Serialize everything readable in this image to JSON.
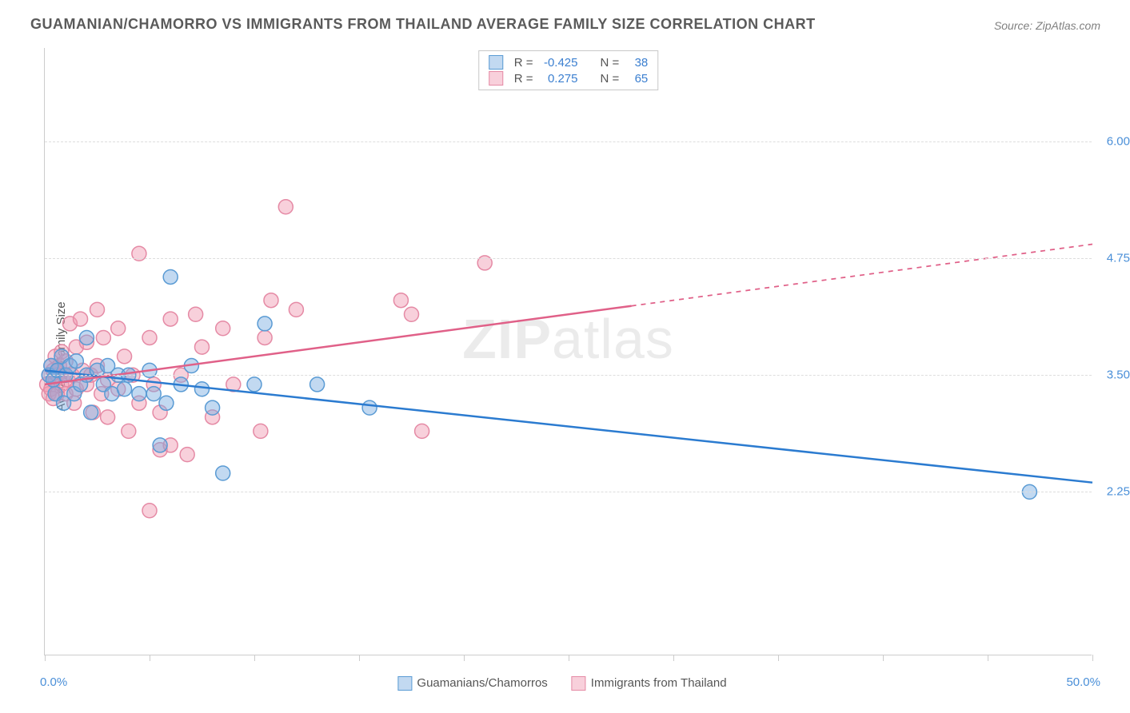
{
  "title": "GUAMANIAN/CHAMORRO VS IMMIGRANTS FROM THAILAND AVERAGE FAMILY SIZE CORRELATION CHART",
  "source": "Source: ZipAtlas.com",
  "yaxis_label": "Average Family Size",
  "xaxis_min_label": "0.0%",
  "xaxis_max_label": "50.0%",
  "watermark_bold": "ZIP",
  "watermark_rest": "atlas",
  "chart": {
    "type": "scatter-with-regression",
    "background_color": "#ffffff",
    "grid_color": "#dddddd",
    "axis_color": "#cccccc",
    "tick_label_color": "#4a8fd8",
    "xlim": [
      0,
      50
    ],
    "ylim": [
      0.5,
      7.0
    ],
    "yticks": [
      2.25,
      3.5,
      4.75,
      6.0
    ],
    "xticks_pct": [
      0,
      5,
      10,
      15,
      20,
      25,
      30,
      35,
      40,
      45,
      50
    ],
    "marker_radius": 9,
    "marker_stroke_width": 1.5,
    "line_width": 2.5,
    "series": [
      {
        "name": "Guamanians/Chamorros",
        "fill_color": "rgba(120,170,225,0.45)",
        "stroke_color": "#5a9bd4",
        "line_color": "#2b7bd0",
        "R": -0.425,
        "N": 38,
        "regression": {
          "x1": 0,
          "y1": 3.55,
          "x2": 50,
          "y2": 2.35,
          "solid_until_x": 50
        },
        "points": [
          [
            0.2,
            3.5
          ],
          [
            0.3,
            3.6
          ],
          [
            0.4,
            3.45
          ],
          [
            0.5,
            3.3
          ],
          [
            0.6,
            3.55
          ],
          [
            0.8,
            3.7
          ],
          [
            0.9,
            3.2
          ],
          [
            1.0,
            3.5
          ],
          [
            1.2,
            3.6
          ],
          [
            1.4,
            3.3
          ],
          [
            1.5,
            3.65
          ],
          [
            1.7,
            3.4
          ],
          [
            2.0,
            3.5
          ],
          [
            2.0,
            3.9
          ],
          [
            2.2,
            3.1
          ],
          [
            2.5,
            3.55
          ],
          [
            2.8,
            3.4
          ],
          [
            3.0,
            3.6
          ],
          [
            3.2,
            3.3
          ],
          [
            3.5,
            3.5
          ],
          [
            3.8,
            3.35
          ],
          [
            4.0,
            3.5
          ],
          [
            4.5,
            3.3
          ],
          [
            5.0,
            3.55
          ],
          [
            5.2,
            3.3
          ],
          [
            5.5,
            2.75
          ],
          [
            5.8,
            3.2
          ],
          [
            6.0,
            4.55
          ],
          [
            6.5,
            3.4
          ],
          [
            7.0,
            3.6
          ],
          [
            7.5,
            3.35
          ],
          [
            8.0,
            3.15
          ],
          [
            8.5,
            2.45
          ],
          [
            10.0,
            3.4
          ],
          [
            10.5,
            4.05
          ],
          [
            13.0,
            3.4
          ],
          [
            15.5,
            3.15
          ],
          [
            47.0,
            2.25
          ]
        ]
      },
      {
        "name": "Immigrants from Thailand",
        "fill_color": "rgba(240,150,175,0.45)",
        "stroke_color": "#e58aa5",
        "line_color": "#e06088",
        "R": 0.275,
        "N": 65,
        "regression": {
          "x1": 0,
          "y1": 3.4,
          "x2": 50,
          "y2": 4.9,
          "solid_until_x": 28
        },
        "points": [
          [
            0.1,
            3.4
          ],
          [
            0.2,
            3.5
          ],
          [
            0.2,
            3.3
          ],
          [
            0.3,
            3.6
          ],
          [
            0.3,
            3.35
          ],
          [
            0.4,
            3.55
          ],
          [
            0.4,
            3.25
          ],
          [
            0.5,
            3.45
          ],
          [
            0.5,
            3.7
          ],
          [
            0.6,
            3.5
          ],
          [
            0.6,
            3.3
          ],
          [
            0.7,
            3.6
          ],
          [
            0.8,
            3.4
          ],
          [
            0.8,
            3.75
          ],
          [
            0.9,
            3.5
          ],
          [
            1.0,
            3.3
          ],
          [
            1.0,
            3.65
          ],
          [
            1.1,
            3.45
          ],
          [
            1.2,
            4.05
          ],
          [
            1.3,
            3.5
          ],
          [
            1.4,
            3.2
          ],
          [
            1.5,
            3.8
          ],
          [
            1.5,
            3.35
          ],
          [
            1.7,
            4.1
          ],
          [
            1.8,
            3.55
          ],
          [
            2.0,
            3.4
          ],
          [
            2.0,
            3.85
          ],
          [
            2.2,
            3.5
          ],
          [
            2.3,
            3.1
          ],
          [
            2.5,
            4.2
          ],
          [
            2.5,
            3.6
          ],
          [
            2.7,
            3.3
          ],
          [
            2.8,
            3.9
          ],
          [
            3.0,
            3.45
          ],
          [
            3.0,
            3.05
          ],
          [
            3.5,
            4.0
          ],
          [
            3.5,
            3.35
          ],
          [
            3.8,
            3.7
          ],
          [
            4.0,
            2.9
          ],
          [
            4.2,
            3.5
          ],
          [
            4.5,
            4.8
          ],
          [
            4.5,
            3.2
          ],
          [
            5.0,
            2.05
          ],
          [
            5.0,
            3.9
          ],
          [
            5.2,
            3.4
          ],
          [
            5.5,
            2.7
          ],
          [
            5.5,
            3.1
          ],
          [
            6.0,
            4.1
          ],
          [
            6.0,
            2.75
          ],
          [
            6.5,
            3.5
          ],
          [
            6.8,
            2.65
          ],
          [
            7.2,
            4.15
          ],
          [
            7.5,
            3.8
          ],
          [
            8.0,
            3.05
          ],
          [
            8.5,
            4.0
          ],
          [
            9.0,
            3.4
          ],
          [
            10.3,
            2.9
          ],
          [
            10.5,
            3.9
          ],
          [
            10.8,
            4.3
          ],
          [
            11.5,
            5.3
          ],
          [
            12.0,
            4.2
          ],
          [
            17.0,
            4.3
          ],
          [
            17.5,
            4.15
          ],
          [
            18.0,
            2.9
          ],
          [
            21.0,
            4.7
          ]
        ]
      }
    ]
  },
  "stats_box": {
    "rows": [
      {
        "swatch_fill": "rgba(120,170,225,0.45)",
        "swatch_border": "#5a9bd4",
        "R_label": "R =",
        "R_value": "-0.425",
        "N_label": "N =",
        "N_value": "38"
      },
      {
        "swatch_fill": "rgba(240,150,175,0.45)",
        "swatch_border": "#e58aa5",
        "R_label": "R =",
        "R_value": "0.275",
        "N_label": "N =",
        "N_value": "65"
      }
    ]
  },
  "bottom_legend": [
    {
      "swatch_fill": "rgba(120,170,225,0.45)",
      "swatch_border": "#5a9bd4",
      "label": "Guamanians/Chamorros"
    },
    {
      "swatch_fill": "rgba(240,150,175,0.45)",
      "swatch_border": "#e58aa5",
      "label": "Immigrants from Thailand"
    }
  ]
}
